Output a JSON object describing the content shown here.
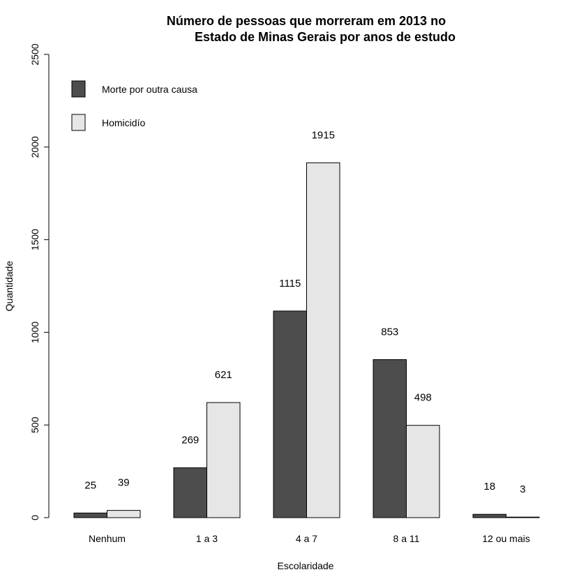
{
  "chart_data": {
    "type": "bar",
    "title_line1": "Número de pessoas que morreram em 2013 no",
    "title_line2": "Estado de Minas Gerais por anos de estudo",
    "xlabel": "Escolaridade",
    "ylabel": "Quantidade",
    "ylim": [
      0,
      2500
    ],
    "yticks": [
      0,
      500,
      1000,
      1500,
      2000,
      2500
    ],
    "categories": [
      "Nenhum",
      "1 a 3",
      "4 a 7",
      "8 a 11",
      "12 ou mais"
    ],
    "series": [
      {
        "name": "Morte por outra causa",
        "color": "#4d4d4d",
        "values": [
          25,
          269,
          1115,
          853,
          18
        ]
      },
      {
        "name": "Homicidío",
        "color": "#e6e6e6",
        "values": [
          39,
          621,
          1915,
          498,
          3
        ]
      }
    ],
    "legend_position": "top-left",
    "grid": false
  }
}
